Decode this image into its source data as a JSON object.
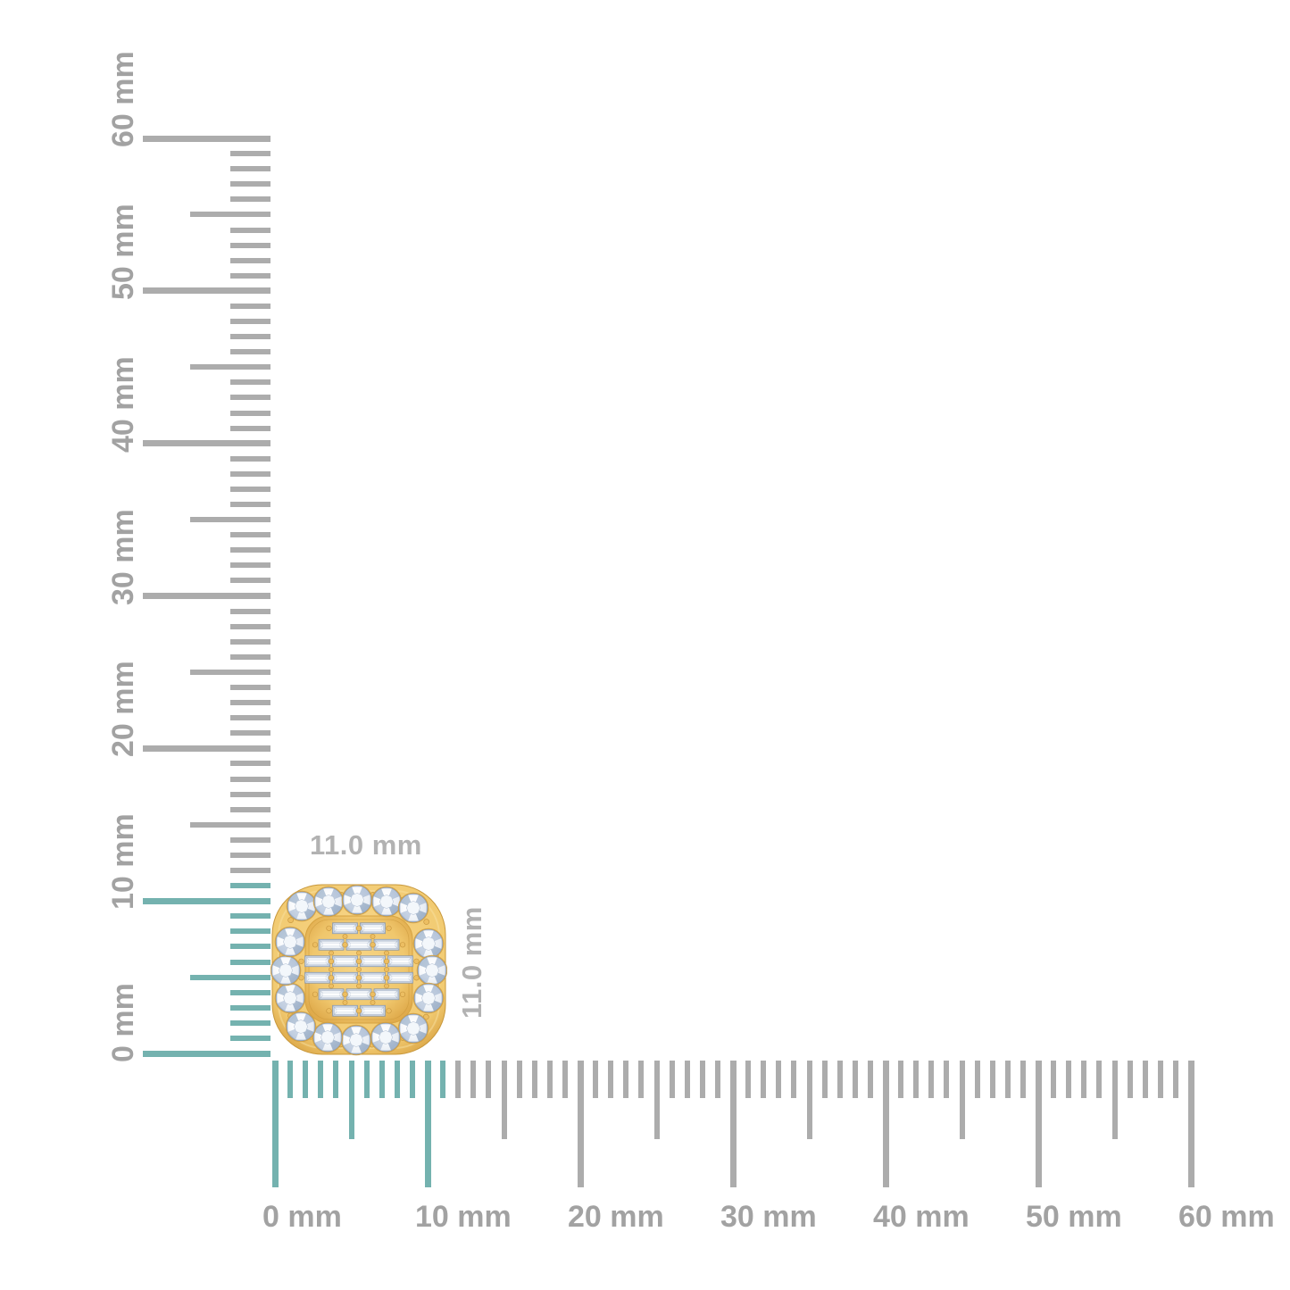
{
  "image_type": "jewelry product size reference with rulers",
  "measurement": {
    "width_label": "11.0 mm",
    "height_label": "11.0 mm",
    "item_width_mm": 11.0,
    "item_height_mm": 11.0
  },
  "vertical_ruler": {
    "unit": "mm",
    "min_mm": 0,
    "max_mm": 60,
    "major_step_mm": 10,
    "medium_step_mm": 5,
    "minor_step_mm": 1,
    "highlight_to_mm": 11,
    "labels": [
      "0 mm",
      "10 mm",
      "20 mm",
      "30 mm",
      "40 mm",
      "50 mm",
      "60 mm"
    ]
  },
  "horizontal_ruler": {
    "unit": "mm",
    "min_mm": 0,
    "max_mm": 60,
    "major_step_mm": 10,
    "medium_step_mm": 5,
    "minor_step_mm": 1,
    "highlight_to_mm": 11,
    "labels": [
      "0 mm",
      "10 mm",
      "20 mm",
      "30 mm",
      "40 mm",
      "50 mm",
      "60 mm"
    ]
  },
  "jewelry": {
    "style": "cushion-shape halo cluster stud",
    "metal_color": "yellow gold",
    "halo_round_diamonds": 16,
    "baguette_rows": [
      2,
      3,
      4,
      4,
      3,
      2
    ],
    "baguette_diamonds_total": 18
  },
  "colors": {
    "background": "#FFFFFF",
    "tick_gray": "#ACACAC",
    "highlight_teal": "#74B2AF",
    "ruler_label_gray": "#A2A2A2",
    "annotation_gray": "#B2B2B2",
    "gold": "#F2CB72",
    "gold_dark": "#D9A343",
    "diamond_light": "#EEF2F8",
    "diamond_shadow": "#9FB0C8"
  }
}
